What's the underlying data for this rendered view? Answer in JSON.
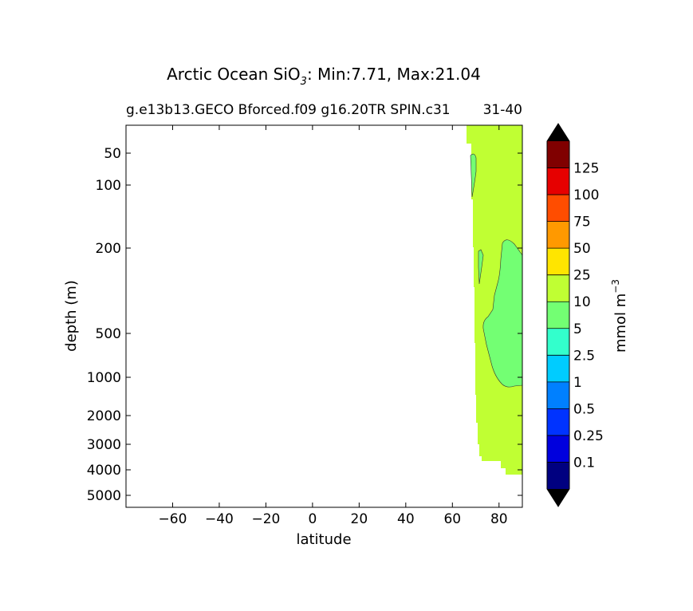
{
  "chart_data": {
    "type": "contour",
    "title_main": "Arctic Ocean SiO",
    "title_sub": "3",
    "title_rest": ": Min:7.71, Max:21.04",
    "subtitle_left": "g.e13b13.GECO Bforced.f09 g16.20TR SPIN.c31",
    "subtitle_right": "31-40",
    "xlabel": "latitude",
    "ylabel": "depth (m)",
    "xlim": [
      -80,
      90
    ],
    "x_ticks": [
      -60,
      -40,
      -20,
      0,
      20,
      40,
      60,
      80
    ],
    "x_tick_labels": [
      "−60",
      "−40",
      "−20",
      "0",
      "20",
      "40",
      "60",
      "80"
    ],
    "y_scale": "log-like (depth)",
    "y_ticks": [
      50,
      100,
      200,
      500,
      1000,
      2000,
      3000,
      4000,
      5000
    ],
    "y_tick_labels": [
      "50",
      "100",
      "200",
      "500",
      "1000",
      "2000",
      "3000",
      "4000",
      "5000"
    ],
    "colorbar": {
      "label": "mmol m",
      "label_sup": "−3",
      "levels": [
        "0.1",
        "0.25",
        "0.5",
        "1",
        "2.5",
        "5",
        "10",
        "25",
        "50",
        "75",
        "100",
        "125"
      ],
      "colors": [
        "#000080",
        "#0000dd",
        "#0033ff",
        "#0080ff",
        "#00ccff",
        "#33ffcc",
        "#73ff73",
        "#c0ff33",
        "#ffe500",
        "#ff9900",
        "#ff4d00",
        "#e60000",
        "#800000"
      ],
      "extend": "both",
      "extend_color": "#000000"
    },
    "fields": [
      {
        "range": "10-25",
        "color": "#c0ff33"
      },
      {
        "range": "5-10",
        "color": "#73ff73"
      }
    ]
  }
}
